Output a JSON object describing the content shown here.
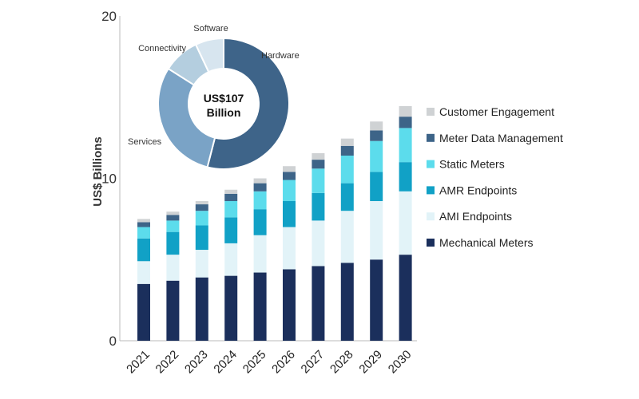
{
  "chart_data": [
    {
      "type": "bar",
      "stacked": true,
      "title": "",
      "xlabel": "",
      "ylabel": "US$ Billions",
      "ylim": [
        0,
        20
      ],
      "yticks": [
        0,
        10,
        20
      ],
      "categories": [
        "2021",
        "2022",
        "2023",
        "2024",
        "2025",
        "2026",
        "2027",
        "2028",
        "2029",
        "2030"
      ],
      "legend_position": "right",
      "series": [
        {
          "name": "Mechanical Meters",
          "color": "#1b2f5c",
          "values": [
            3.5,
            3.7,
            3.9,
            4.0,
            4.2,
            4.4,
            4.6,
            4.8,
            5.0,
            5.3
          ]
        },
        {
          "name": "AMI Endpoints",
          "color": "#e2f3f8",
          "values": [
            1.4,
            1.6,
            1.7,
            2.0,
            2.3,
            2.6,
            2.8,
            3.2,
            3.6,
            3.9
          ]
        },
        {
          "name": "AMR Endpoints",
          "color": "#11a1c6",
          "values": [
            1.4,
            1.4,
            1.5,
            1.6,
            1.6,
            1.6,
            1.7,
            1.7,
            1.8,
            1.8
          ]
        },
        {
          "name": "Static Meters",
          "color": "#5cdcec",
          "values": [
            0.7,
            0.7,
            0.9,
            1.0,
            1.1,
            1.3,
            1.5,
            1.7,
            1.9,
            2.1
          ]
        },
        {
          "name": "Meter Data Management",
          "color": "#3d6488",
          "values": [
            0.3,
            0.35,
            0.4,
            0.45,
            0.5,
            0.5,
            0.55,
            0.6,
            0.65,
            0.7
          ]
        },
        {
          "name": "Customer Engagement",
          "color": "#cfd2d4",
          "values": [
            0.2,
            0.2,
            0.2,
            0.25,
            0.3,
            0.35,
            0.4,
            0.45,
            0.55,
            0.65
          ]
        }
      ]
    },
    {
      "type": "pie",
      "donut": true,
      "center_label_line1": "US$107",
      "center_label_line2": "Billion",
      "slices": [
        {
          "name": "Hardware",
          "value": 54,
          "color": "#3e6489"
        },
        {
          "name": "Services",
          "value": 30,
          "color": "#7aa3c6"
        },
        {
          "name": "Connectivity",
          "value": 9,
          "color": "#b4cedf"
        },
        {
          "name": "Software",
          "value": 7,
          "color": "#d7e5ef"
        }
      ]
    }
  ]
}
